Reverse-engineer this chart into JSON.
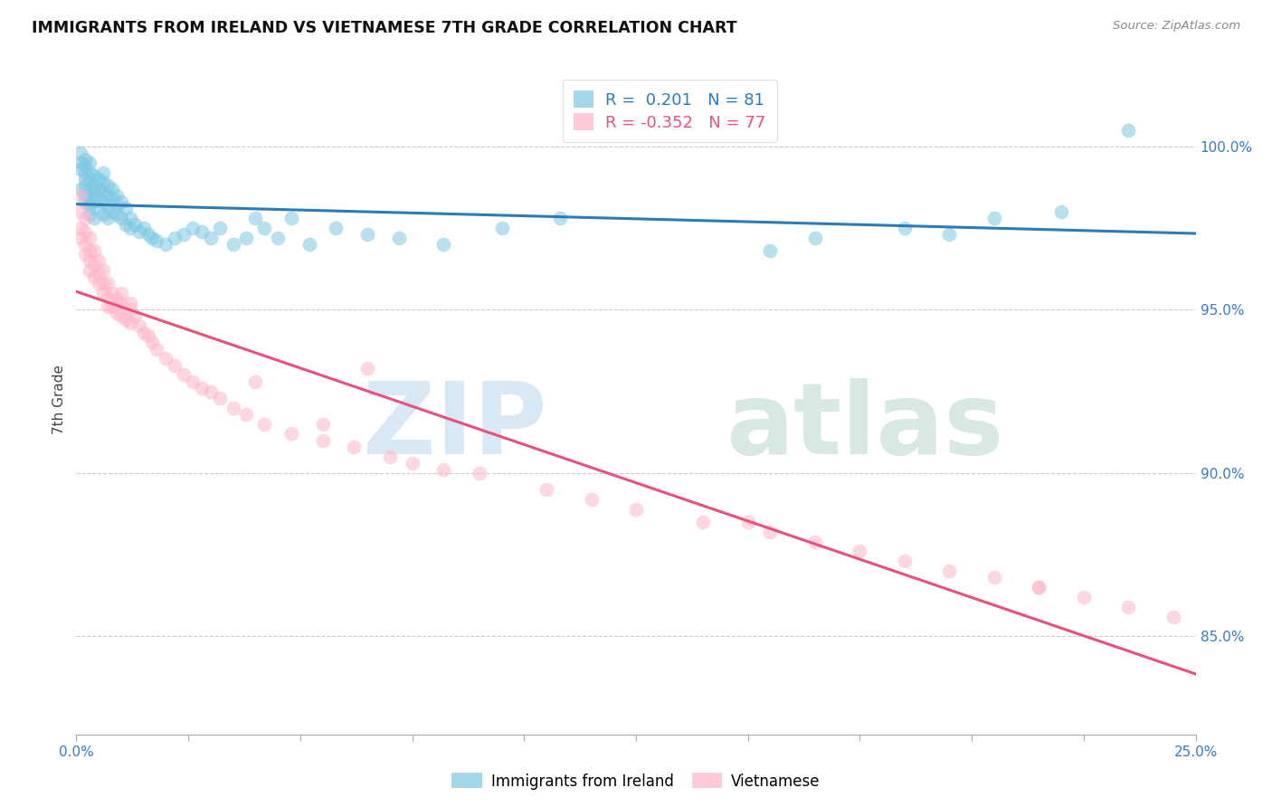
{
  "title": "IMMIGRANTS FROM IRELAND VS VIETNAMESE 7TH GRADE CORRELATION CHART",
  "source": "Source: ZipAtlas.com",
  "ylabel": "7th Grade",
  "yticks": [
    85.0,
    90.0,
    95.0,
    100.0
  ],
  "ytick_labels": [
    "85.0%",
    "90.0%",
    "95.0%",
    "100.0%"
  ],
  "xlim": [
    0.0,
    0.25
  ],
  "ylim": [
    82.0,
    102.5
  ],
  "legend_R_ireland": "0.201",
  "legend_N_ireland": "81",
  "legend_R_vietnamese": "-0.352",
  "legend_N_vietnamese": "77",
  "ireland_color": "#7ec8e3",
  "vietnam_color": "#ffb6c8",
  "ireland_line_color": "#2c7bb6",
  "vietnam_line_color": "#e8527a",
  "ireland_x": [
    0.001,
    0.001,
    0.001,
    0.001,
    0.002,
    0.002,
    0.002,
    0.002,
    0.002,
    0.002,
    0.002,
    0.003,
    0.003,
    0.003,
    0.003,
    0.003,
    0.003,
    0.003,
    0.004,
    0.004,
    0.004,
    0.004,
    0.004,
    0.005,
    0.005,
    0.005,
    0.005,
    0.006,
    0.006,
    0.006,
    0.006,
    0.006,
    0.007,
    0.007,
    0.007,
    0.007,
    0.008,
    0.008,
    0.008,
    0.009,
    0.009,
    0.009,
    0.01,
    0.01,
    0.011,
    0.011,
    0.012,
    0.012,
    0.013,
    0.014,
    0.015,
    0.016,
    0.017,
    0.018,
    0.02,
    0.022,
    0.024,
    0.026,
    0.028,
    0.03,
    0.032,
    0.035,
    0.038,
    0.04,
    0.042,
    0.045,
    0.048,
    0.052,
    0.058,
    0.065,
    0.072,
    0.082,
    0.095,
    0.108,
    0.155,
    0.165,
    0.185,
    0.195,
    0.205,
    0.22,
    0.235
  ],
  "ireland_y": [
    99.8,
    99.5,
    99.3,
    98.7,
    99.6,
    99.4,
    99.2,
    99.0,
    98.8,
    98.5,
    98.3,
    99.5,
    99.2,
    99.0,
    98.7,
    98.4,
    98.2,
    97.9,
    99.1,
    98.8,
    98.6,
    98.3,
    97.8,
    99.0,
    98.7,
    98.4,
    98.1,
    99.2,
    98.9,
    98.6,
    98.3,
    97.9,
    98.8,
    98.5,
    98.2,
    97.8,
    98.7,
    98.4,
    98.0,
    98.5,
    98.2,
    97.9,
    98.3,
    97.8,
    98.1,
    97.6,
    97.8,
    97.5,
    97.6,
    97.4,
    97.5,
    97.3,
    97.2,
    97.1,
    97.0,
    97.2,
    97.3,
    97.5,
    97.4,
    97.2,
    97.5,
    97.0,
    97.2,
    97.8,
    97.5,
    97.2,
    97.8,
    97.0,
    97.5,
    97.3,
    97.2,
    97.0,
    97.5,
    97.8,
    96.8,
    97.2,
    97.5,
    97.3,
    97.8,
    98.0,
    100.5
  ],
  "vietnamese_x": [
    0.001,
    0.001,
    0.001,
    0.001,
    0.002,
    0.002,
    0.002,
    0.002,
    0.003,
    0.003,
    0.003,
    0.003,
    0.004,
    0.004,
    0.004,
    0.005,
    0.005,
    0.005,
    0.006,
    0.006,
    0.006,
    0.007,
    0.007,
    0.007,
    0.008,
    0.008,
    0.009,
    0.009,
    0.01,
    0.01,
    0.011,
    0.012,
    0.012,
    0.013,
    0.014,
    0.015,
    0.016,
    0.017,
    0.018,
    0.02,
    0.022,
    0.024,
    0.026,
    0.028,
    0.03,
    0.032,
    0.035,
    0.038,
    0.042,
    0.048,
    0.055,
    0.062,
    0.07,
    0.075,
    0.082,
    0.09,
    0.105,
    0.115,
    0.125,
    0.14,
    0.155,
    0.165,
    0.175,
    0.185,
    0.195,
    0.205,
    0.215,
    0.225,
    0.235,
    0.245,
    0.01,
    0.012,
    0.04,
    0.055,
    0.065,
    0.15,
    0.215
  ],
  "vietnamese_y": [
    98.5,
    98.0,
    97.5,
    97.2,
    97.8,
    97.4,
    97.0,
    96.7,
    97.2,
    96.8,
    96.5,
    96.2,
    96.8,
    96.4,
    96.0,
    96.5,
    96.1,
    95.8,
    96.2,
    95.8,
    95.5,
    95.8,
    95.4,
    95.1,
    95.5,
    95.1,
    95.3,
    94.9,
    95.2,
    94.8,
    94.7,
    95.0,
    94.6,
    94.8,
    94.5,
    94.3,
    94.2,
    94.0,
    93.8,
    93.5,
    93.3,
    93.0,
    92.8,
    92.6,
    92.5,
    92.3,
    92.0,
    91.8,
    91.5,
    91.2,
    91.0,
    90.8,
    90.5,
    90.3,
    90.1,
    90.0,
    89.5,
    89.2,
    88.9,
    88.5,
    88.2,
    87.9,
    87.6,
    87.3,
    87.0,
    86.8,
    86.5,
    86.2,
    85.9,
    85.6,
    95.5,
    95.2,
    92.8,
    91.5,
    93.2,
    88.5,
    86.5
  ]
}
